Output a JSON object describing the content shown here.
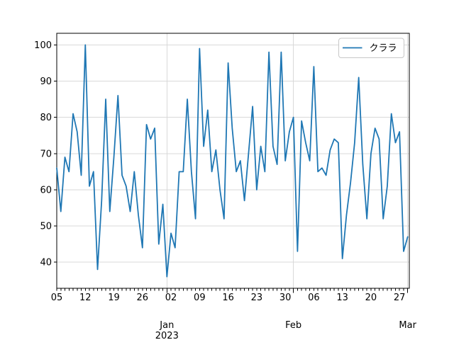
{
  "figure": {
    "background": "#ffffff"
  },
  "chart_data": {
    "type": "line",
    "title": "",
    "xlabel": "",
    "ylabel": "",
    "grid": true,
    "x_range": "2022-12-05 to 2023-03-01",
    "x_frequency": "daily",
    "xlim_days": [
      0,
      86.4
    ],
    "ylim": [
      32.8,
      103.2
    ],
    "y_ticks": [
      40,
      50,
      60,
      70,
      80,
      90,
      100
    ],
    "x_day_tick_labels": [
      {
        "day": 0,
        "label": "05"
      },
      {
        "day": 7,
        "label": "12"
      },
      {
        "day": 14,
        "label": "19"
      },
      {
        "day": 21,
        "label": "26"
      },
      {
        "day": 28,
        "label": "02"
      },
      {
        "day": 35,
        "label": "09"
      },
      {
        "day": 42,
        "label": "16"
      },
      {
        "day": 49,
        "label": "23"
      },
      {
        "day": 56,
        "label": "30"
      },
      {
        "day": 63,
        "label": "06"
      },
      {
        "day": 70,
        "label": "13"
      },
      {
        "day": 77,
        "label": "20"
      },
      {
        "day": 84,
        "label": "27"
      }
    ],
    "x_month_ticks": [
      {
        "day": 27,
        "label": "Jan",
        "sublabel": "2023"
      },
      {
        "day": 58,
        "label": "Feb",
        "sublabel": ""
      },
      {
        "day": 86,
        "label": "Mar",
        "sublabel": ""
      }
    ],
    "legend": {
      "position": "upper right",
      "label": "クララ"
    },
    "series": [
      {
        "name": "クララ",
        "color": "#1f77b4",
        "start_date": "2022-12-05",
        "frequency": "daily",
        "values": [
          66,
          54,
          69,
          65,
          81,
          76,
          64,
          100,
          61,
          65,
          38,
          57,
          85,
          54,
          69,
          86,
          64,
          61,
          54,
          65,
          53,
          44,
          78,
          74,
          77,
          45,
          56,
          36,
          48,
          44,
          65,
          65,
          85,
          65,
          52,
          99,
          72,
          82,
          65,
          71,
          60,
          52,
          95,
          77,
          65,
          68,
          57,
          70,
          83,
          60,
          72,
          65,
          98,
          72,
          67,
          98,
          68,
          76,
          80,
          43,
          79,
          73,
          68,
          94,
          65,
          66,
          64,
          71,
          74,
          73,
          41,
          53,
          62,
          73,
          91,
          67,
          52,
          70,
          77,
          74,
          52,
          61,
          81,
          73,
          76,
          43,
          47
        ]
      }
    ],
    "colors": {
      "line": "#1f77b4",
      "grid": "#d9d9d9",
      "spine": "#000000",
      "tick_label": "#000000",
      "legend_border": "#c8c8c8",
      "legend_background": "#ffffff"
    }
  }
}
